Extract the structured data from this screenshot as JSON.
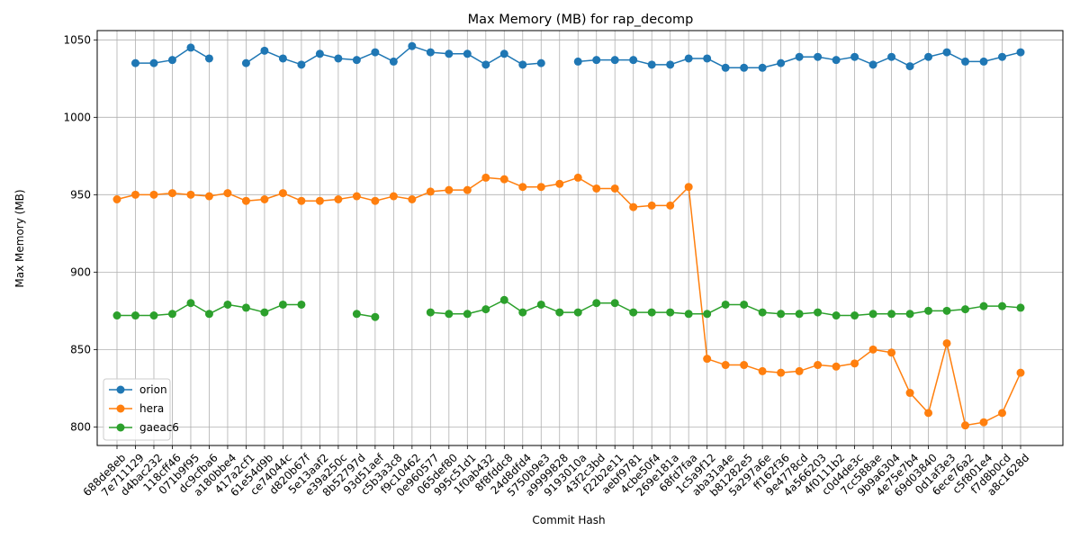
{
  "chart_data": {
    "type": "line",
    "title": "Max Memory (MB) for rap_decomp",
    "xlabel": "Commit Hash",
    "ylabel": "Max Memory (MB)",
    "ylim": [
      788,
      1056
    ],
    "yticks": [
      800,
      850,
      900,
      950,
      1000,
      1050
    ],
    "grid": true,
    "legend_position": "lower-left",
    "categories": [
      "688de8eb",
      "7e711129",
      "d4bac232",
      "118cff46",
      "071b9f95",
      "dc9cfba6",
      "a180bbe4",
      "417a2cf1",
      "61e54d9b",
      "ce74044c",
      "d820b67f",
      "5e13aaf2",
      "e39a250c",
      "8b52797d",
      "93d51aef",
      "c5b3a3c8",
      "f9c10462",
      "0e960577",
      "065def80",
      "995c51d1",
      "1f0ab432",
      "8f8fddc8",
      "24d8dfd4",
      "5750b9e3",
      "a9999828",
      "9193010a",
      "43f2c3bd",
      "f22b2e11",
      "aebf9781",
      "4cbe50f4",
      "269e181a",
      "68fd7faa",
      "1c5a9f12",
      "aba31a4e",
      "b81282e5",
      "5a297a6e",
      "ff162f36",
      "9e4778cd",
      "4a566203",
      "4f0111b2",
      "c0d4de3c",
      "7cc588ae",
      "9b9a6304",
      "4e75e7b4",
      "69d03840",
      "0d1af3e3",
      "6ece76a2",
      "c5f801e4",
      "f7d8b0cd",
      "a8c1628d"
    ],
    "series": [
      {
        "name": "orion",
        "color": "#1f77b4",
        "values": [
          null,
          1035,
          1035,
          1037,
          1045,
          1038,
          null,
          1035,
          1043,
          1038,
          1034,
          1041,
          1038,
          1037,
          1042,
          1036,
          1046,
          1042,
          1041,
          1041,
          1034,
          1041,
          1034,
          1035,
          null,
          1036,
          1037,
          1037,
          1037,
          1034,
          1034,
          1038,
          1038,
          1032,
          1032,
          1032,
          1035,
          1039,
          1039,
          1037,
          1039,
          1034,
          1039,
          1033,
          1039,
          1042,
          1036,
          1036,
          1039,
          1042
        ]
      },
      {
        "name": "hera",
        "color": "#ff7f0e",
        "values": [
          947,
          950,
          950,
          951,
          950,
          949,
          951,
          946,
          947,
          951,
          946,
          946,
          947,
          949,
          946,
          949,
          947,
          952,
          953,
          953,
          961,
          960,
          955,
          955,
          957,
          961,
          954,
          954,
          942,
          943,
          943,
          955,
          844,
          840,
          840,
          836,
          835,
          836,
          840,
          839,
          841,
          850,
          848,
          822,
          809,
          854,
          801,
          803,
          809,
          835
        ]
      },
      {
        "name": "gaeac6",
        "color": "#2ca02c",
        "values": [
          872,
          872,
          872,
          873,
          880,
          873,
          879,
          877,
          874,
          879,
          879,
          null,
          null,
          873,
          871,
          null,
          null,
          874,
          873,
          873,
          876,
          882,
          874,
          879,
          874,
          874,
          880,
          880,
          874,
          874,
          874,
          873,
          873,
          879,
          879,
          874,
          873,
          873,
          874,
          872,
          872,
          873,
          873,
          873,
          875,
          875,
          876,
          878,
          878,
          877
        ]
      }
    ]
  }
}
